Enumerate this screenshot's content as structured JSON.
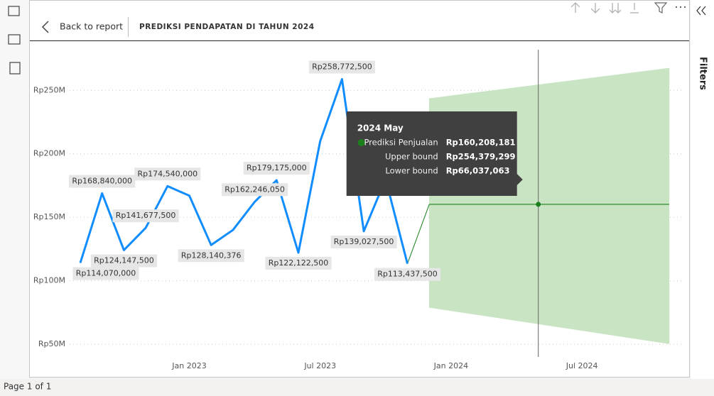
{
  "nav": {
    "back": "Back to report"
  },
  "filters": {
    "title": "Filters"
  },
  "status": {
    "page": "Page 1 of 1"
  },
  "chart_data": {
    "type": "line",
    "title": "PREDIKSI PENDAPATAN DI TAHUN 2024",
    "x": [
      "2022 Aug",
      "2022 Sep",
      "2022 Oct",
      "2022 Nov",
      "2022 Dec",
      "2023 Jan",
      "2023 Feb",
      "2023 Mar",
      "2023 Apr",
      "2023 May",
      "2023 Jun",
      "2023 Jul",
      "2023 Aug",
      "2023 Sep",
      "2023 Oct",
      "2023 Nov",
      "2023 Dec",
      "2024 Jan",
      "2024 Feb",
      "2024 Mar",
      "2024 Apr",
      "2024 May",
      "2024 Jun",
      "2024 Jul",
      "2024 Aug",
      "2024 Sep",
      "2024 Oct",
      "2024 Nov"
    ],
    "xticks": [
      {
        "value": "2023 Jan",
        "label": "Jan 2023"
      },
      {
        "value": "2023 Jul",
        "label": "Jul 2023"
      },
      {
        "value": "2024 Jan",
        "label": "Jan 2024"
      },
      {
        "value": "2024 Jul",
        "label": "Jul 2024"
      }
    ],
    "ylim": [
      40000000,
      282000000
    ],
    "yticks": [
      {
        "value": 50000000,
        "label": "Rp50M"
      },
      {
        "value": 100000000,
        "label": "Rp100M"
      },
      {
        "value": 150000000,
        "label": "Rp150M"
      },
      {
        "value": 200000000,
        "label": "Rp200M"
      },
      {
        "value": 250000000,
        "label": "Rp250M"
      }
    ],
    "grid": true,
    "series": [
      {
        "color": "#118dff",
        "values": [
          114070000,
          168840000,
          124147500,
          141677500,
          174540000,
          167000000,
          128140376,
          140000000,
          162246050,
          179175000,
          122122500,
          210000000,
          258772500,
          139027500,
          180000000,
          113437500,
          null,
          null,
          null,
          null,
          null,
          null,
          null,
          null,
          null,
          null,
          null,
          null
        ],
        "value_labels": [
          "Rp114,070,000",
          "Rp168,840,000",
          "Rp124,147,500",
          "Rp141,677,500",
          "Rp174,540,000",
          null,
          "Rp128,140,376",
          null,
          "Rp162,246,050",
          "Rp179,175,000",
          "Rp122,122,500",
          null,
          "Rp258,772,500",
          "Rp139,027,500",
          null,
          "Rp113,437,500",
          null,
          null,
          null,
          null,
          null,
          null,
          null,
          null,
          null,
          null,
          null,
          null
        ]
      },
      {
        "name": "Prediksi Penjualan",
        "color": "#1a7f1a",
        "values": [
          null,
          null,
          null,
          null,
          null,
          null,
          null,
          null,
          null,
          null,
          null,
          null,
          null,
          null,
          null,
          null,
          160208181,
          160208181,
          160208181,
          160208181,
          160208181,
          160208181,
          160208181,
          160208181,
          160208181,
          160208181,
          160208181,
          160208181
        ]
      },
      {
        "name": "Upper bound",
        "color": "#c8e4c2",
        "values": [
          null,
          null,
          null,
          null,
          null,
          null,
          null,
          null,
          null,
          null,
          null,
          null,
          null,
          null,
          null,
          null,
          243500000,
          245700000,
          247900000,
          250000000,
          252200000,
          254379299,
          256500000,
          258700000,
          260900000,
          263100000,
          265300000,
          267500000
        ]
      },
      {
        "name": "Lower bound",
        "color": "#c8e4c2",
        "values": [
          null,
          null,
          null,
          null,
          null,
          null,
          null,
          null,
          null,
          null,
          null,
          null,
          null,
          null,
          null,
          null,
          79000000,
          76400000,
          73800000,
          71200000,
          68600000,
          66037063,
          63400000,
          60800000,
          58200000,
          55600000,
          53000000,
          50400000
        ]
      }
    ],
    "tooltip": {
      "title": "2024 May",
      "rows": [
        {
          "name": "Prediksi Penjualan",
          "value": 160208181,
          "label": "Rp160,208,181"
        },
        {
          "name": "Upper bound",
          "value": 254379299,
          "label": "Rp254,379,299"
        },
        {
          "name": "Lower bound",
          "value": 66037063,
          "label": "Rp66,037,063"
        }
      ]
    }
  }
}
